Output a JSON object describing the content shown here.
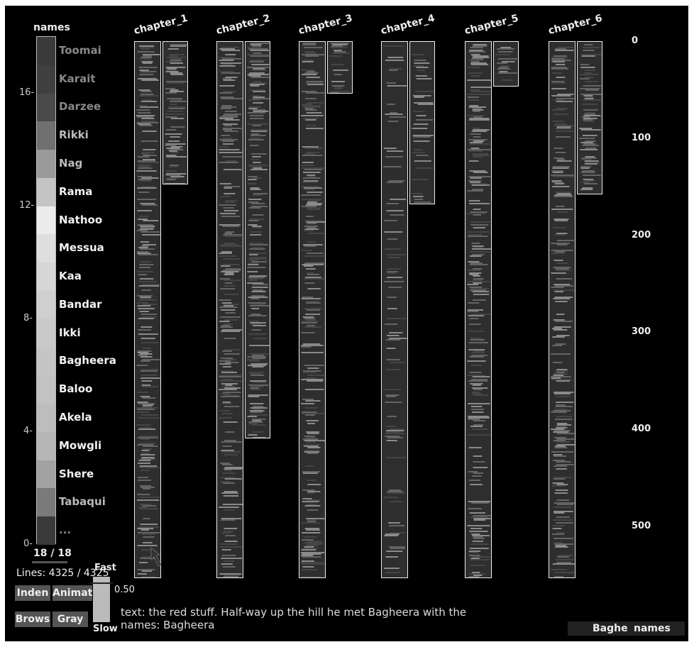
{
  "legend": {
    "title": "names",
    "items": [
      {
        "label": "Toomai",
        "color": "#3a3a3a"
      },
      {
        "label": "Karait",
        "color": "#3f3f3f"
      },
      {
        "label": "Darzee",
        "color": "#4a4a4a"
      },
      {
        "label": "Rikki",
        "color": "#707070"
      },
      {
        "label": "Nag",
        "color": "#9a9a9a"
      },
      {
        "label": "Rama",
        "color": "#c4c4c4"
      },
      {
        "label": "Nathoo",
        "color": "#ececec"
      },
      {
        "label": "Messua",
        "color": "#dedede"
      },
      {
        "label": "Kaa",
        "color": "#d6d6d6"
      },
      {
        "label": "Bandar",
        "color": "#cfcfcf"
      },
      {
        "label": "Ikki",
        "color": "#c9c9c9"
      },
      {
        "label": "Bagheera",
        "color": "#c5c5c5"
      },
      {
        "label": "Baloo",
        "color": "#c2c2c2"
      },
      {
        "label": "Akela",
        "color": "#bdbdbd"
      },
      {
        "label": "Mowgli",
        "color": "#b6b6b6"
      },
      {
        "label": "Shere",
        "color": "#a2a2a2"
      },
      {
        "label": "Tabaqui",
        "color": "#7a7a7a"
      },
      {
        "label": "...",
        "color": "#3a3a3a"
      }
    ],
    "ticks": [
      "0",
      "4",
      "8",
      "12",
      "16"
    ],
    "count_label": "18 / 18"
  },
  "chapters": [
    {
      "title": "chapter_1"
    },
    {
      "title": "chapter_2"
    },
    {
      "title": "chapter_3"
    },
    {
      "title": "chapter_4"
    },
    {
      "title": "chapter_5"
    },
    {
      "title": "chapter_6"
    }
  ],
  "y_axis_ticks": [
    "0",
    "100",
    "200",
    "300",
    "400",
    "500"
  ],
  "lines_label": "Lines: 4325 / 4325",
  "buttons": {
    "inden": "Inden",
    "animat": "Animat",
    "brows": "Brows",
    "gray": "Gray"
  },
  "speed": {
    "fast": "Fast",
    "slow": "Slow",
    "value": "0.50"
  },
  "footer": {
    "text_line": "text: the red stuff. Half-way up the hill he met Bagheera with the",
    "names_line": "names: Bagheera"
  },
  "status": {
    "left": "Baghe",
    "right": "names"
  },
  "colors": {
    "background": "#000000",
    "column_fill": "#2e2e2e",
    "border": "#eeeeee"
  }
}
